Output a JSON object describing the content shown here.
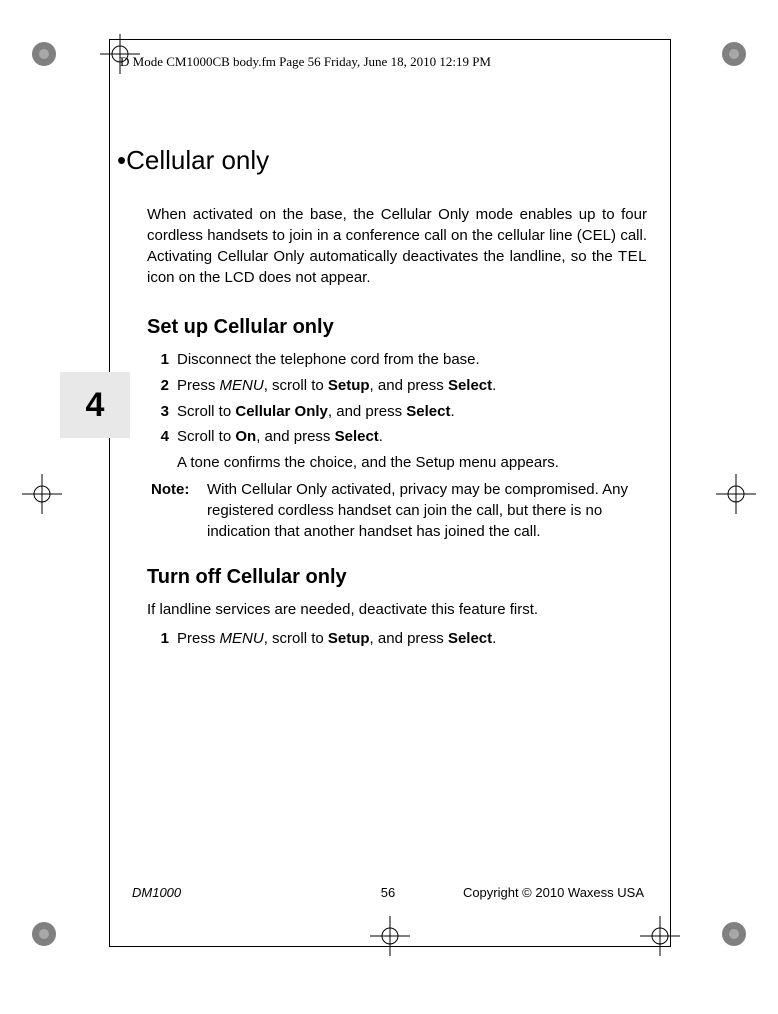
{
  "header": "D Mode CM1000CB body.fm  Page 56  Friday, June 18, 2010  12:19 PM",
  "tab_number": "4",
  "title_bullet": "•",
  "title": "Cellular only",
  "intro_parts": {
    "before_tel": "When activated on the base, the Cellular Only mode enables up to four cordless handsets to join in a conference call on the cellular line (CEL) call. Activating Cellular Only automatically deactivates the landline, so the ",
    "tel": "TEL",
    "after_tel": " icon on the LCD does not appear."
  },
  "setup_heading": "Set up Cellular only",
  "steps_setup": [
    {
      "n": "1",
      "plain": "Disconnect the telephone cord from the base."
    },
    {
      "n": "2",
      "seq": [
        {
          "t": "plain",
          "v": "Press "
        },
        {
          "t": "menu",
          "v": "MENU"
        },
        {
          "t": "plain",
          "v": ", scroll to "
        },
        {
          "t": "ui",
          "v": "Setup"
        },
        {
          "t": "plain",
          "v": ", and press "
        },
        {
          "t": "ui",
          "v": "Select"
        },
        {
          "t": "plain",
          "v": "."
        }
      ]
    },
    {
      "n": "3",
      "seq": [
        {
          "t": "plain",
          "v": "Scroll to "
        },
        {
          "t": "ui",
          "v": "Cellular Only"
        },
        {
          "t": "plain",
          "v": ", and press "
        },
        {
          "t": "ui",
          "v": "Select"
        },
        {
          "t": "plain",
          "v": "."
        }
      ]
    },
    {
      "n": "4",
      "seq": [
        {
          "t": "plain",
          "v": "Scroll to "
        },
        {
          "t": "ui",
          "v": "On"
        },
        {
          "t": "plain",
          "v": ", and press "
        },
        {
          "t": "ui",
          "v": "Select"
        },
        {
          "t": "plain",
          "v": "."
        }
      ]
    }
  ],
  "tone_line": "A tone confirms the choice, and the Setup menu appears.",
  "note_label": "Note:",
  "note_body": "With Cellular Only activated, privacy may be compromised. Any registered cordless handset can join the call, but there is no indication that another handset has joined the call.",
  "turnoff_heading": "Turn off Cellular only",
  "turnoff_intro": "If landline services are needed, deactivate this feature first.",
  "steps_turnoff": [
    {
      "n": "1",
      "seq": [
        {
          "t": "plain",
          "v": "Press "
        },
        {
          "t": "menu",
          "v": "MENU"
        },
        {
          "t": "plain",
          "v": ", scroll to "
        },
        {
          "t": "ui",
          "v": "Setup"
        },
        {
          "t": "plain",
          "v": ", and press "
        },
        {
          "t": "ui",
          "v": "Select"
        },
        {
          "t": "plain",
          "v": "."
        }
      ]
    }
  ],
  "footer": {
    "left": "DM1000",
    "page": "56",
    "right": "Copyright © 2010 Waxess USA"
  },
  "colors": {
    "background": "#ffffff",
    "text": "#000000",
    "tab_bg": "#e8e8e8",
    "mark": "#808080"
  }
}
